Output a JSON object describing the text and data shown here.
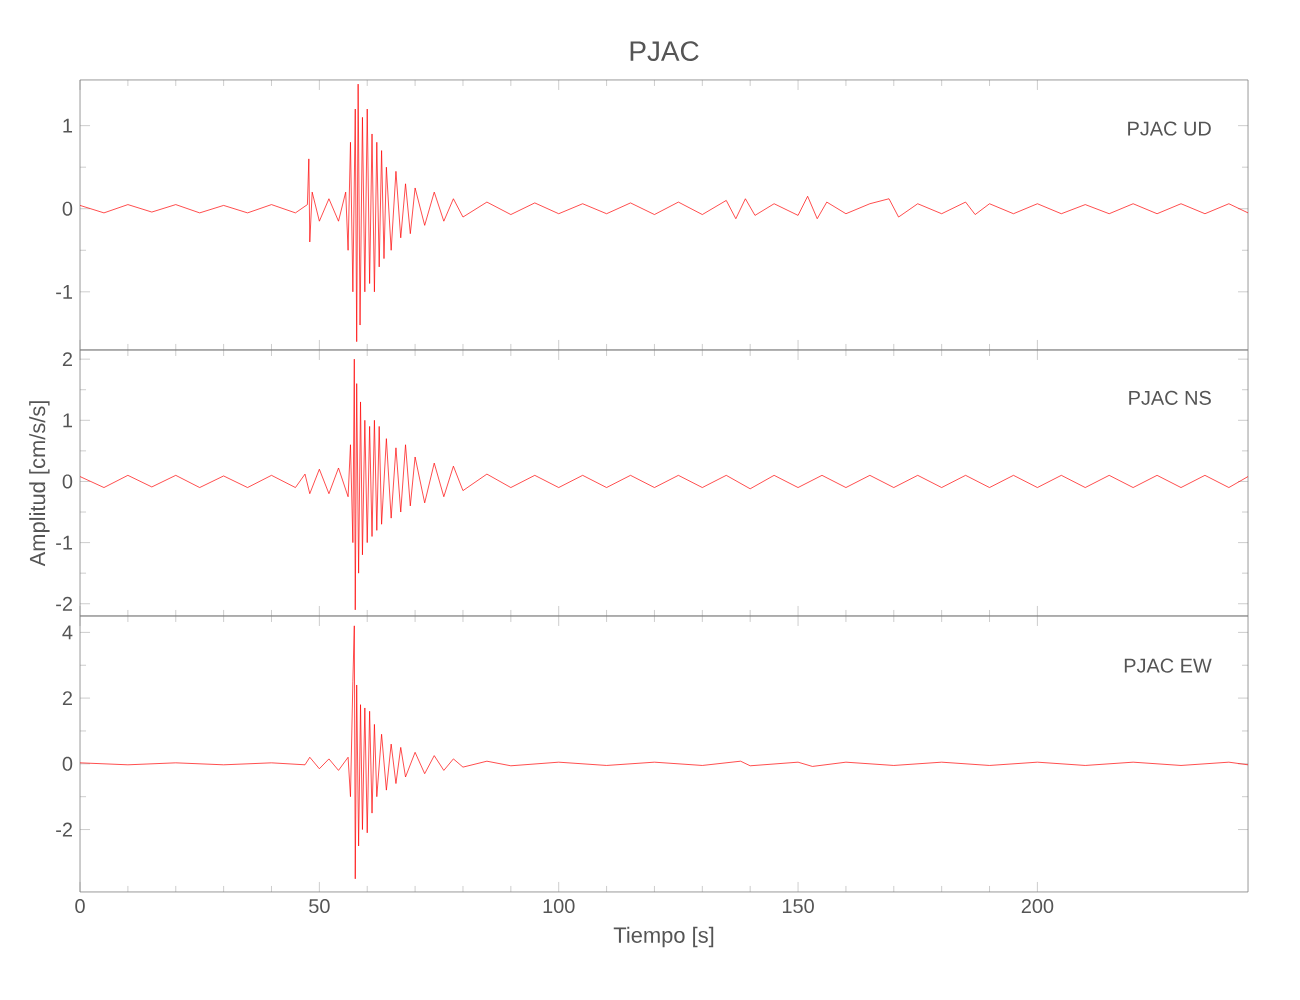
{
  "chart_data": [
    {
      "type": "line",
      "title": "PJAC",
      "annotations": [
        "PJAC   UD"
      ],
      "tick_labels": "y",
      "xlim": [
        0,
        244
      ],
      "xticks": [
        0,
        50,
        100,
        150,
        200
      ],
      "ylim": [
        -1.7,
        1.55
      ],
      "yticks": [
        -1,
        0,
        1
      ],
      "series": [
        {
          "color": "#ff0000",
          "x": [
            0,
            5,
            10,
            15,
            20,
            25,
            30,
            35,
            40,
            45,
            47.5,
            47.8,
            48.0,
            48.5,
            50,
            52,
            54,
            55.5,
            56,
            56.5,
            57,
            57.5,
            57.8,
            58.1,
            58.5,
            59,
            59.5,
            60,
            60.5,
            61,
            61.5,
            62,
            62.5,
            63,
            63.5,
            64,
            65,
            66,
            67,
            68,
            69,
            70,
            72,
            74,
            76,
            78,
            80,
            85,
            90,
            95,
            100,
            105,
            110,
            115,
            120,
            125,
            130,
            135,
            137,
            139,
            141,
            145,
            150,
            152,
            154,
            156,
            160,
            165,
            169,
            171,
            175,
            180,
            185,
            187,
            190,
            195,
            200,
            205,
            210,
            215,
            220,
            225,
            230,
            235,
            240,
            244
          ],
          "values": [
            0.04,
            -0.05,
            0.05,
            -0.04,
            0.05,
            -0.05,
            0.04,
            -0.05,
            0.05,
            -0.05,
            0.05,
            0.6,
            -0.4,
            0.2,
            -0.15,
            0.12,
            -0.15,
            0.2,
            -0.5,
            0.8,
            -1.0,
            1.2,
            -1.6,
            1.5,
            -1.4,
            1.1,
            -1.0,
            1.2,
            -0.9,
            0.9,
            -1.0,
            0.8,
            -0.7,
            0.7,
            -0.6,
            0.5,
            -0.5,
            0.45,
            -0.35,
            0.3,
            -0.3,
            0.25,
            -0.2,
            0.2,
            -0.15,
            0.12,
            -0.1,
            0.08,
            -0.07,
            0.07,
            -0.06,
            0.06,
            -0.06,
            0.07,
            -0.07,
            0.08,
            -0.07,
            0.1,
            -0.12,
            0.12,
            -0.08,
            0.06,
            -0.08,
            0.15,
            -0.12,
            0.08,
            -0.06,
            0.06,
            0.12,
            -0.1,
            0.06,
            -0.06,
            0.08,
            -0.07,
            0.06,
            -0.06,
            0.06,
            -0.06,
            0.05,
            -0.06,
            0.06,
            -0.06,
            0.06,
            -0.06,
            0.06,
            -0.05
          ]
        }
      ]
    },
    {
      "type": "line",
      "ylabel": "Amplitud [cm/s/s]",
      "annotations": [
        "PJAC   NS"
      ],
      "tick_labels": "y",
      "xlim": [
        0,
        244
      ],
      "xticks": [
        0,
        50,
        100,
        150,
        200
      ],
      "ylim": [
        -2.2,
        2.15
      ],
      "yticks": [
        -2,
        -1,
        0,
        1,
        2
      ],
      "series": [
        {
          "color": "#ff0000",
          "x": [
            0,
            5,
            10,
            15,
            20,
            25,
            30,
            35,
            40,
            45,
            47,
            48,
            50,
            52,
            54,
            56,
            56.5,
            57,
            57.3,
            57.5,
            57.8,
            58.2,
            58.6,
            59,
            59.5,
            60,
            60.5,
            61,
            61.5,
            62,
            62.5,
            63,
            64,
            65,
            66,
            67,
            68,
            69,
            70,
            72,
            74,
            76,
            78,
            80,
            85,
            90,
            95,
            100,
            105,
            110,
            115,
            120,
            125,
            130,
            135,
            140,
            145,
            150,
            155,
            160,
            165,
            170,
            175,
            180,
            185,
            190,
            195,
            200,
            205,
            210,
            215,
            220,
            225,
            230,
            235,
            240,
            244
          ],
          "values": [
            0.08,
            -0.1,
            0.1,
            -0.09,
            0.1,
            -0.1,
            0.09,
            -0.1,
            0.1,
            -0.1,
            0.12,
            -0.2,
            0.2,
            -0.2,
            0.22,
            -0.25,
            0.6,
            -1.0,
            2.0,
            -2.1,
            1.6,
            -1.5,
            1.3,
            -1.2,
            1.0,
            -1.0,
            0.9,
            -0.9,
            1.0,
            -0.8,
            0.9,
            -0.7,
            0.7,
            -0.6,
            0.55,
            -0.5,
            0.6,
            -0.4,
            0.4,
            -0.35,
            0.3,
            -0.25,
            0.25,
            -0.15,
            0.12,
            -0.1,
            0.1,
            -0.1,
            0.1,
            -0.1,
            0.1,
            -0.1,
            0.1,
            -0.1,
            0.1,
            -0.12,
            0.1,
            -0.1,
            0.1,
            -0.1,
            0.1,
            -0.1,
            0.1,
            -0.1,
            0.1,
            -0.1,
            0.1,
            -0.1,
            0.1,
            -0.1,
            0.1,
            -0.1,
            0.1,
            -0.1,
            0.1,
            -0.1,
            0.08
          ]
        }
      ]
    },
    {
      "type": "line",
      "xlabel": "Tiempo [s]",
      "annotations": [
        "PJAC   EW"
      ],
      "xlim": [
        0,
        244
      ],
      "xticks": [
        0,
        50,
        100,
        150,
        200
      ],
      "ylim": [
        -3.9,
        4.5
      ],
      "yticks": [
        -2,
        0,
        2,
        4
      ],
      "series": [
        {
          "color": "#ff0000",
          "x": [
            0,
            10,
            20,
            30,
            40,
            47,
            48,
            50,
            52,
            54,
            56,
            56.5,
            57,
            57.3,
            57.5,
            57.8,
            58.2,
            58.6,
            59,
            59.5,
            60,
            60.5,
            61,
            61.5,
            62,
            63,
            64,
            65,
            66,
            67,
            68,
            70,
            72,
            74,
            76,
            78,
            80,
            85,
            90,
            100,
            110,
            120,
            130,
            138,
            140,
            150,
            153,
            160,
            170,
            180,
            190,
            200,
            210,
            220,
            230,
            240,
            244
          ],
          "values": [
            0.03,
            -0.03,
            0.03,
            -0.03,
            0.03,
            -0.03,
            0.2,
            -0.15,
            0.15,
            -0.2,
            0.2,
            -1.0,
            2.5,
            4.2,
            -3.5,
            2.4,
            -2.5,
            1.8,
            -2.0,
            1.7,
            -2.1,
            1.6,
            -1.5,
            1.2,
            -1.0,
            0.9,
            -0.8,
            0.6,
            -0.6,
            0.5,
            -0.4,
            0.35,
            -0.3,
            0.25,
            -0.2,
            0.15,
            -0.1,
            0.08,
            -0.06,
            0.05,
            -0.05,
            0.05,
            -0.05,
            0.08,
            -0.06,
            0.05,
            -0.08,
            0.05,
            -0.05,
            0.05,
            -0.05,
            0.05,
            -0.05,
            0.05,
            -0.05,
            0.05,
            -0.03
          ]
        }
      ]
    }
  ]
}
